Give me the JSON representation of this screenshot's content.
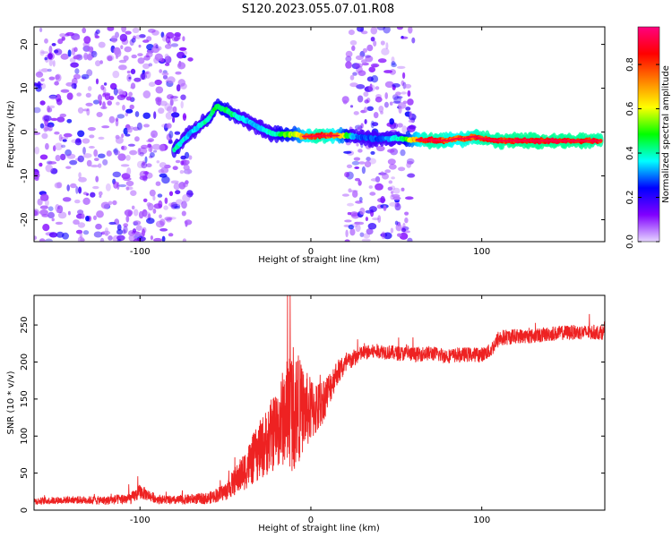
{
  "title": "S120.2023.055.07.01.R08",
  "chart_data": [
    {
      "type": "heatmap",
      "xlabel": "Height of straight line (km)",
      "ylabel": "Frequency (Hz)",
      "xlim": [
        -162,
        172
      ],
      "ylim": [
        -25,
        24
      ],
      "xticks": [
        -100,
        0,
        100
      ],
      "yticks": [
        -20,
        -10,
        0,
        10,
        20
      ],
      "colorbar": {
        "label": "Normalized spectral amplitude",
        "range": [
          0,
          0.97
        ],
        "ticks": [
          "0.0",
          "0.2",
          "0.4",
          "0.6",
          "0.8"
        ],
        "colormap": [
          "#e6d6ff",
          "#8000ff",
          "#0000ff",
          "#00ffff",
          "#00ff00",
          "#ffff00",
          "#ff8000",
          "#ff0000",
          "#ff0080"
        ]
      },
      "noise_regions": [
        [
          -162,
          -80
        ],
        [
          -80,
          -70
        ],
        [
          20,
          60
        ]
      ],
      "ridge": {
        "x": [
          -80,
          -70,
          -60,
          -55,
          -50,
          -45,
          -40,
          -35,
          -30,
          -25,
          -20,
          -15,
          -10,
          -5,
          0,
          5,
          10,
          15,
          20,
          25,
          30,
          35,
          40,
          45,
          50,
          55,
          60,
          65,
          70,
          75,
          80,
          85,
          90,
          95,
          100,
          110,
          120,
          130,
          140,
          150,
          160,
          170
        ],
        "y": [
          -4,
          0,
          3,
          6,
          5,
          4,
          3,
          2,
          1,
          0,
          -0.5,
          -0.5,
          -0.5,
          -1,
          -1,
          -0.8,
          -0.8,
          -0.8,
          -0.8,
          -1,
          -1.2,
          -1.4,
          -1.5,
          -1.5,
          -1.5,
          -1.6,
          -1.7,
          -1.8,
          -1.8,
          -1.9,
          -2,
          -1.5,
          -1.5,
          -1,
          -1.5,
          -2,
          -2,
          -2,
          -2,
          -2,
          -2,
          -2
        ],
        "amplitude": [
          0.45,
          0.35,
          0.45,
          0.5,
          0.5,
          0.45,
          0.4,
          0.35,
          0.35,
          0.4,
          0.45,
          0.55,
          0.6,
          0.75,
          0.85,
          0.9,
          0.85,
          0.8,
          0.6,
          0.35,
          0.3,
          0.3,
          0.3,
          0.35,
          0.4,
          0.5,
          0.7,
          0.85,
          0.9,
          0.88,
          0.85,
          0.8,
          0.85,
          0.85,
          0.9,
          0.9,
          0.92,
          0.92,
          0.92,
          0.92,
          0.92,
          0.9
        ]
      }
    },
    {
      "type": "line",
      "xlabel": "Height of straight line (km)",
      "ylabel": "SNR (10 * v/v)",
      "xlim": [
        -162,
        172
      ],
      "ylim": [
        0,
        290
      ],
      "xticks": [
        -100,
        0,
        100
      ],
      "yticks": [
        0,
        50,
        100,
        150,
        200,
        250
      ],
      "series": [
        {
          "color": "#ee2222",
          "x": [
            -162,
            -140,
            -120,
            -105,
            -100,
            -90,
            -80,
            -70,
            -60,
            -50,
            -40,
            -30,
            -20,
            -15,
            -10,
            -5,
            0,
            5,
            10,
            15,
            20,
            25,
            30,
            40,
            50,
            60,
            70,
            80,
            90,
            100,
            105,
            110,
            120,
            130,
            140,
            150,
            160,
            172
          ],
          "values": [
            12,
            14,
            13,
            16,
            25,
            15,
            13,
            15,
            16,
            25,
            50,
            80,
            110,
            130,
            140,
            135,
            135,
            140,
            160,
            185,
            195,
            205,
            212,
            215,
            212,
            210,
            212,
            208,
            210,
            210,
            215,
            232,
            235,
            235,
            238,
            240,
            240,
            240
          ],
          "noise": [
            5,
            5,
            6,
            8,
            10,
            6,
            6,
            7,
            8,
            12,
            25,
            40,
            55,
            70,
            90,
            60,
            45,
            35,
            25,
            18,
            15,
            12,
            10,
            10,
            10,
            10,
            10,
            10,
            10,
            10,
            10,
            12,
            10,
            10,
            10,
            10,
            10,
            10
          ]
        }
      ]
    }
  ]
}
